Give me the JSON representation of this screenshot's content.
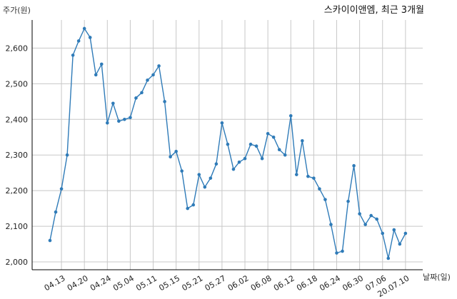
{
  "chart_data": {
    "type": "line",
    "title": "스카이이앤엠, 최근 3개월",
    "xlabel": "날짜(일)",
    "ylabel": "주가(원)",
    "ylim": [
      2000,
      2650
    ],
    "yticks": [
      2000,
      2100,
      2200,
      2300,
      2400,
      2500,
      2600
    ],
    "ytick_labels": [
      "2,000",
      "2,100",
      "2,200",
      "2,300",
      "2,400",
      "2,500",
      "2,600"
    ],
    "grid": true,
    "color": "#2f7bb8",
    "xtick_labels": [
      "04.13",
      "04.20",
      "04.24",
      "05.04",
      "05.11",
      "05.15",
      "05.21",
      "05.27",
      "06.02",
      "06.08",
      "06.12",
      "06.18",
      "06.24",
      "06.30",
      "07.06",
      "20.07.10"
    ],
    "xtick_index": [
      2,
      6,
      10,
      14,
      18,
      22,
      26,
      30,
      34,
      38,
      42,
      46,
      50,
      54,
      58,
      62
    ],
    "values": [
      2060,
      2140,
      2205,
      2300,
      2580,
      2620,
      2655,
      2630,
      2525,
      2555,
      2390,
      2445,
      2395,
      2400,
      2405,
      2460,
      2475,
      2510,
      2525,
      2550,
      2450,
      2295,
      2310,
      2255,
      2150,
      2160,
      2245,
      2210,
      2235,
      2275,
      2390,
      2330,
      2260,
      2280,
      2290,
      2330,
      2325,
      2290,
      2360,
      2350,
      2315,
      2300,
      2410,
      2245,
      2340,
      2240,
      2235,
      2205,
      2175,
      2105,
      2025,
      2030,
      2170,
      2270,
      2135,
      2105,
      2130,
      2120,
      2080,
      2010,
      2090,
      2050,
      2080
    ]
  }
}
